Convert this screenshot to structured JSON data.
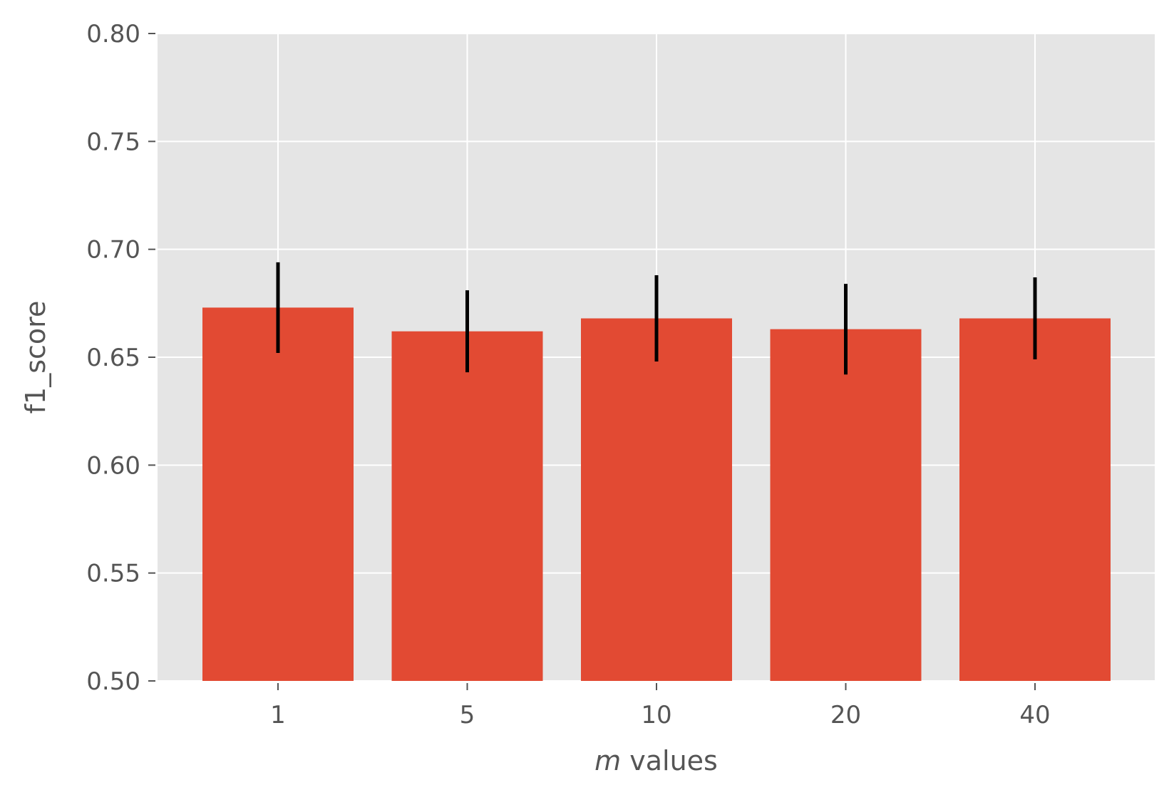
{
  "chart_data": {
    "type": "bar",
    "categories": [
      "1",
      "5",
      "10",
      "20",
      "40"
    ],
    "values": [
      0.673,
      0.662,
      0.668,
      0.663,
      0.668
    ],
    "error": [
      0.021,
      0.019,
      0.02,
      0.021,
      0.019
    ],
    "title": "",
    "xlabel_italic": "m",
    "xlabel_rest": " values",
    "ylabel": "f1_score",
    "ylim": [
      0.5,
      0.8
    ],
    "yticks": [
      "0.50",
      "0.55",
      "0.60",
      "0.65",
      "0.70",
      "0.75",
      "0.80"
    ],
    "ytick_values": [
      0.5,
      0.55,
      0.6,
      0.65,
      0.7,
      0.75,
      0.8
    ],
    "grid": true,
    "colors": {
      "bar": "#E24A33",
      "error_bar": "#000000",
      "plot_background": "#E5E5E5",
      "grid": "#FFFFFF",
      "text": "#555555"
    }
  }
}
